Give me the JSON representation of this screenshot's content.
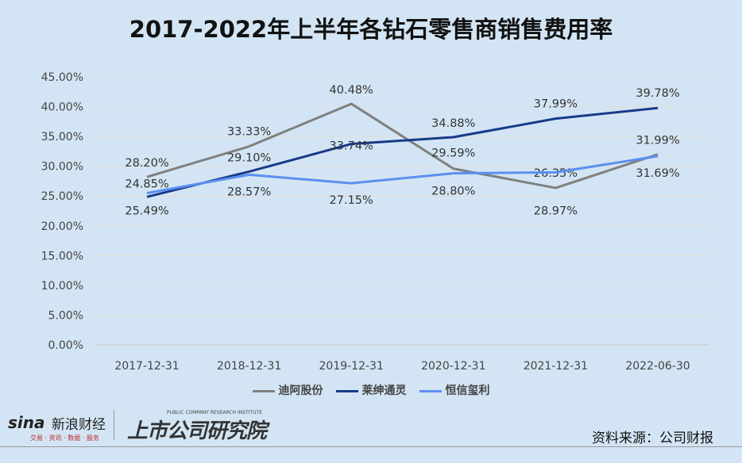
{
  "chart_data": {
    "type": "line",
    "title": "2017-2022年上半年各钻石零售商销售费用率",
    "categories": [
      "2017-12-31",
      "2018-12-31",
      "2019-12-31",
      "2020-12-31",
      "2021-12-31",
      "2022-06-30"
    ],
    "ylim": [
      0,
      45
    ],
    "yticks": [
      "0.00%",
      "5.00%",
      "10.00%",
      "15.00%",
      "20.00%",
      "25.00%",
      "30.00%",
      "35.00%",
      "40.00%",
      "45.00%"
    ],
    "grid": true,
    "legend": "bottom",
    "series": [
      {
        "name": "迪阿股份",
        "color": "#808080",
        "values": [
          28.2,
          33.33,
          40.48,
          29.59,
          26.35,
          31.99
        ],
        "labels": [
          "28.20%",
          "33.33%",
          "40.48%",
          "29.59%",
          "26.35%",
          "31.99%"
        ]
      },
      {
        "name": "莱绅通灵",
        "color": "#173a8a",
        "values": [
          24.85,
          29.1,
          33.74,
          34.88,
          37.99,
          39.78
        ],
        "labels": [
          "24.85%",
          "29.10%",
          "33.74%",
          "34.88%",
          "37.99%",
          "39.78%"
        ]
      },
      {
        "name": "恒信玺利",
        "color": "#5b8ff0",
        "values": [
          25.49,
          28.57,
          27.15,
          28.8,
          28.97,
          31.69
        ],
        "labels": [
          "25.49%",
          "28.57%",
          "27.15%",
          "28.80%",
          "28.97%",
          "31.69%"
        ]
      }
    ]
  },
  "brand": {
    "sina": "sina",
    "sina_cn": "新浪财经",
    "sina_sub": "交易 · 资讯 · 数据 · 服务",
    "institute": "上市公司研究院",
    "institute_en": "PUBLIC COMPANY RESEARCH INSTITUTE"
  },
  "source": "资料来源：公司财报"
}
